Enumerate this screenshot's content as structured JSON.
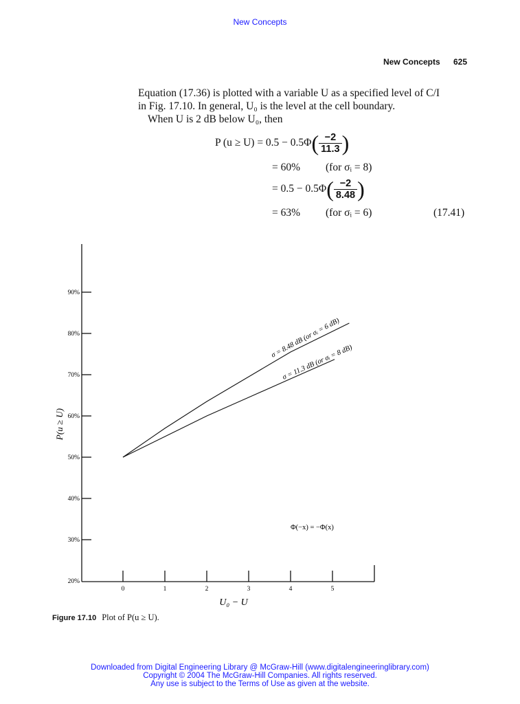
{
  "header": {
    "top_link": "New Concepts",
    "running_head": "New Concepts",
    "page_number": "625"
  },
  "body": {
    "line1": "Equation (17.36) is plotted with a variable U as a specified level of C/I",
    "line2": "in Fig. 17.10. In general, U₀ is the level at the cell boundary.",
    "line3": "When U is 2 dB below U₀, then"
  },
  "equation": {
    "lhs": "P (u ≥ U) = 0.5 − 0.5Φ",
    "frac1_num": "−2",
    "frac1_den": "11.3",
    "line2": "= 60%",
    "line2_note": "(for σᵢ = 8)",
    "line3": "= 0.5 − 0.5Φ",
    "frac2_num": "−2",
    "frac2_den": "8.48",
    "line4": "= 63%",
    "line4_note": "(for σᵢ = 6)",
    "number": "(17.41)"
  },
  "chart_data": {
    "type": "line",
    "xlabel": "U₀ − U",
    "ylabel": "P(u ≥ U)",
    "x_ticks": [
      "0",
      "1",
      "2",
      "3",
      "4",
      "5"
    ],
    "y_ticks": [
      "20%",
      "30%",
      "40%",
      "50%",
      "60%",
      "70%",
      "80%",
      "90%"
    ],
    "xlim": [
      -1,
      6
    ],
    "ylim": [
      20,
      100
    ],
    "grid": false,
    "annotation": "Φ(−x) = −Φ(x)",
    "series": [
      {
        "label": "σ = 8.48 dB (or σᵢ = 6 dB)",
        "x": [
          0,
          1,
          2,
          3,
          4,
          5,
          5.4
        ],
        "y": [
          50,
          57,
          63.5,
          69.5,
          75.5,
          80.5,
          82.5
        ]
      },
      {
        "label": "σ = 11.3 dB (or σᵢ = 8 dB)",
        "x": [
          0,
          1,
          2,
          3,
          4,
          5.05
        ],
        "y": [
          50,
          55,
          60,
          64.5,
          69,
          73.7
        ]
      }
    ]
  },
  "caption": {
    "label": "Figure 17.10",
    "text": "Plot of P(u ≥ U)."
  },
  "footer": {
    "line1": "Downloaded from Digital Engineering Library @ McGraw-Hill (www.digitalengineeringlibrary.com)",
    "line2": "Copyright © 2004 The McGraw-Hill Companies. All rights reserved.",
    "line3": "Any use is subject to the Terms of Use as given at the website."
  }
}
